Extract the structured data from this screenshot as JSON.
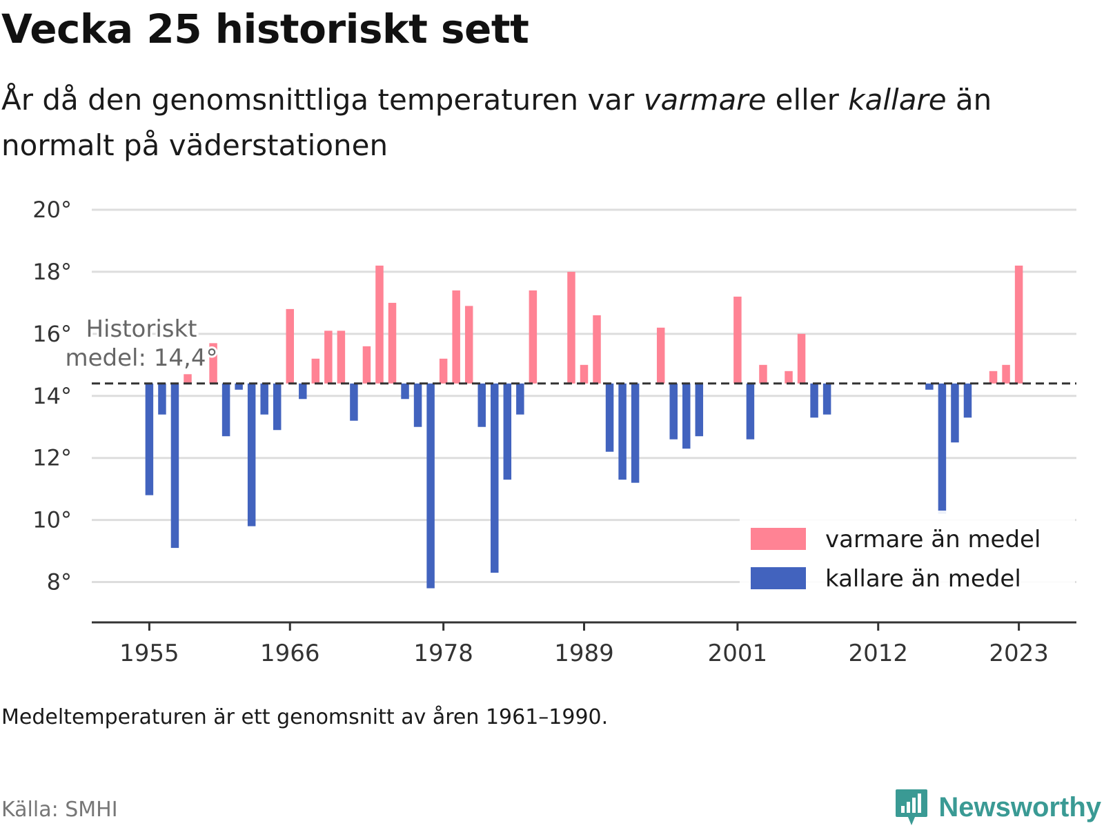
{
  "header": {
    "title": "Vecka 25 historiskt sett",
    "subtitle_part1": "År då den genomsnittliga temperaturen var ",
    "subtitle_warm": "varmare",
    "subtitle_part2": " eller ",
    "subtitle_cold": "kallare",
    "subtitle_part3": " än normalt på väderstationen"
  },
  "footer": {
    "note": "Medeltemperaturen är ett genomsnitt av åren 1961–1990.",
    "source": "Källa: SMHI",
    "brand": "Newsworthy",
    "brand_icon": "bar-chart-speech-icon",
    "brand_color": "#3a9a94"
  },
  "chart_data": {
    "type": "bar",
    "baseline": 14.4,
    "baseline_label_line1": "Historiskt",
    "baseline_label_line2": "medel: 14,4°",
    "ylim": [
      6.7,
      20
    ],
    "yticks": [
      8,
      10,
      12,
      14,
      16,
      18,
      20
    ],
    "ytick_labels": [
      "8°",
      "10°",
      "12°",
      "14°",
      "16°",
      "18°",
      "20°"
    ],
    "xlim": [
      1950.5,
      2027.5
    ],
    "xticks": [
      1955,
      1966,
      1978,
      1989,
      2001,
      2012,
      2023
    ],
    "xtick_labels": [
      "1955",
      "1966",
      "1978",
      "1989",
      "2001",
      "2012",
      "2023"
    ],
    "grid": true,
    "legend_position": "bottom-right",
    "colors": {
      "warm": "#ff8394",
      "cold": "#4263be",
      "grid": "#dddddd",
      "axis": "#333333",
      "baseline": "#333333",
      "tick_text": "#333333",
      "baseline_text": "#666666"
    },
    "series": [
      {
        "name": "varmare än medel",
        "color": "#ff8394"
      },
      {
        "name": "kallare än medel",
        "color": "#4263be"
      }
    ],
    "x": [
      1955,
      1956,
      1957,
      1958,
      1959,
      1960,
      1961,
      1962,
      1963,
      1964,
      1965,
      1966,
      1967,
      1968,
      1969,
      1970,
      1971,
      1972,
      1973,
      1974,
      1975,
      1976,
      1977,
      1978,
      1979,
      1980,
      1981,
      1982,
      1983,
      1984,
      1985,
      1986,
      1987,
      1988,
      1989,
      1990,
      1991,
      1992,
      1993,
      1994,
      1995,
      1996,
      1997,
      1998,
      1999,
      2000,
      2001,
      2002,
      2003,
      2004,
      2005,
      2006,
      2007,
      2008,
      2016,
      2017,
      2018,
      2019,
      2020,
      2021,
      2022,
      2023
    ],
    "values": [
      10.8,
      13.4,
      9.1,
      14.7,
      14.4,
      15.7,
      12.7,
      14.2,
      9.8,
      13.4,
      12.9,
      16.8,
      13.9,
      15.2,
      16.1,
      16.1,
      13.2,
      15.6,
      18.2,
      17.0,
      13.9,
      13.0,
      7.8,
      15.2,
      17.4,
      16.9,
      13.0,
      8.3,
      11.3,
      13.4,
      17.4,
      14.4,
      14.4,
      18.0,
      15.0,
      16.6,
      12.2,
      11.3,
      11.2,
      14.4,
      16.2,
      12.6,
      12.3,
      12.7,
      14.4,
      14.4,
      17.2,
      12.6,
      15.0,
      14.4,
      14.8,
      16.0,
      13.3,
      13.4,
      14.2,
      10.2,
      12.5,
      13.3,
      14.4,
      14.8,
      15.0,
      18.2
    ]
  }
}
